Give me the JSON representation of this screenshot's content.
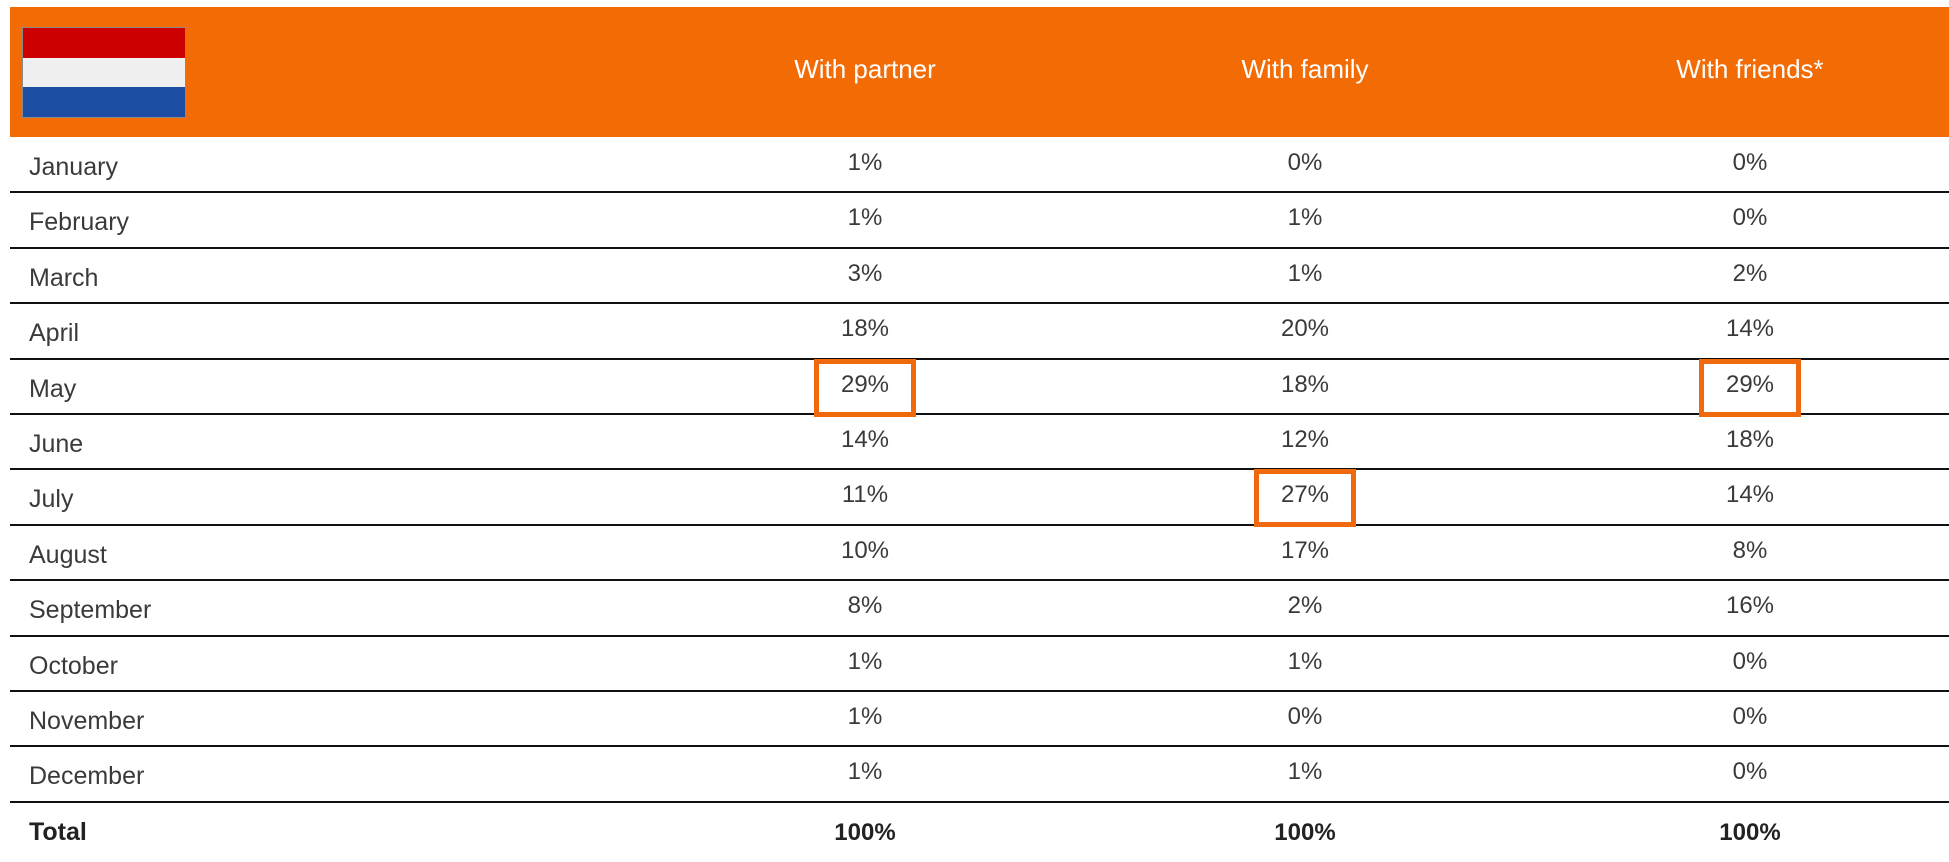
{
  "header": {
    "columns": [
      "With partner",
      "With family",
      "With friends*"
    ]
  },
  "table": {
    "rows": [
      [
        "January",
        "1%",
        "0%",
        "0%"
      ],
      [
        "February",
        "1%",
        "1%",
        "0%"
      ],
      [
        "March",
        "3%",
        "1%",
        "2%"
      ],
      [
        "April",
        "18%",
        "20%",
        "14%"
      ],
      [
        "May",
        "29%",
        "18%",
        "29%"
      ],
      [
        "June",
        "14%",
        "12%",
        "18%"
      ],
      [
        "July",
        "11%",
        "27%",
        "14%"
      ],
      [
        "August",
        "10%",
        "17%",
        "8%"
      ],
      [
        "September",
        "8%",
        "2%",
        "16%"
      ],
      [
        "October",
        "1%",
        "1%",
        "0%"
      ],
      [
        "November",
        "1%",
        "0%",
        "0%"
      ],
      [
        "December",
        "1%",
        "1%",
        "0%"
      ]
    ],
    "total": [
      "Total",
      "100%",
      "100%",
      "100%"
    ]
  },
  "highlight": [
    [
      4,
      1
    ],
    [
      4,
      3
    ],
    [
      6,
      2
    ]
  ]
}
